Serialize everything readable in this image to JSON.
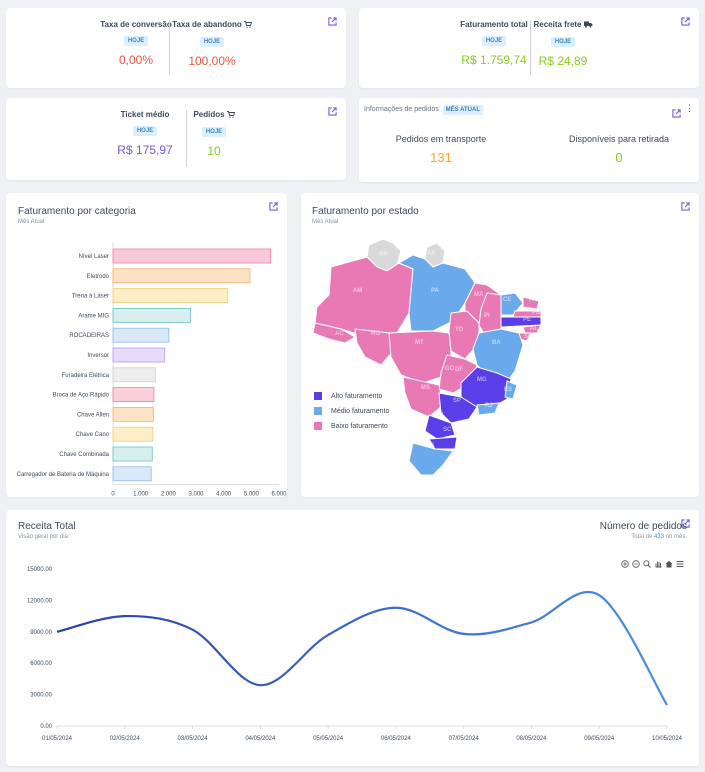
{
  "kpis": {
    "conversion": {
      "label": "Taxa de conversão",
      "badge": "HOJE",
      "value": "0,00%",
      "color": "#f2543d"
    },
    "abandon": {
      "label": "Taxa de abandono",
      "badge": "HOJE",
      "value": "100,00%",
      "color": "#f2543d"
    },
    "billing_total": {
      "label": "Faturamento total",
      "badge": "HOJE",
      "value": "R$ 1.759,74",
      "color": "#84d11c"
    },
    "shipping": {
      "label": "Receita frete",
      "badge": "HOJE",
      "value": "R$ 24,89",
      "color": "#84d11c"
    },
    "ticket": {
      "label": "Ticket médio",
      "badge": "HOJE",
      "value": "R$ 175,97",
      "color": "#6c5ce7"
    },
    "orders": {
      "label": "Pedidos",
      "badge": "HOJE",
      "value": "10",
      "color": "#84d11c"
    }
  },
  "order_info": {
    "title": "Informações de pedidos",
    "badge": "MÊS ATUAL",
    "in_transit_label": "Pedidos em transporte",
    "in_transit_value": "131",
    "in_transit_color": "#f5a623",
    "pickup_label": "Disponíveis para retirada",
    "pickup_value": "0",
    "pickup_color": "#84d11c"
  },
  "category_card": {
    "title": "Faturamento por categoria",
    "subtitle": "Mês Atual"
  },
  "state_card": {
    "title": "Faturamento por estado",
    "subtitle": "Mês Atual",
    "legend": [
      {
        "label": "Alto faturamento",
        "color": "#5a3ee8"
      },
      {
        "label": "Médio faturamento",
        "color": "#6aa9ec"
      },
      {
        "label": "Baixo faturamento",
        "color": "#e879b4"
      }
    ],
    "state_labels": [
      "RR",
      "AP",
      "AM",
      "PA",
      "MA",
      "CE",
      "RN",
      "PB",
      "PE",
      "AL",
      "SE",
      "PI",
      "TO",
      "BA",
      "AC",
      "RO",
      "MT",
      "GO",
      "DF",
      "MS",
      "MG",
      "ES",
      "SP",
      "RJ",
      "PR",
      "SC",
      "RS"
    ]
  },
  "revenue_card": {
    "title": "Receita Total",
    "subtitle": "Visão geral por dia",
    "orders_title": "Número de pedidos",
    "orders_prefix": "Total de ",
    "orders_count": "433",
    "orders_suffix": " no mês."
  },
  "chart_data": [
    {
      "type": "bar",
      "orientation": "horizontal",
      "categories": [
        "Nível Laser",
        "Eletrodo",
        "Trena à Laser",
        "Arame MIG",
        "ROCADEIRAS",
        "Inversor",
        "Furadeira Elétrica",
        "Broca de Aço Rápido",
        "Chave Allen",
        "Chave Cano",
        "Chave Combinada",
        "Carregador de Bateria de Máquina"
      ],
      "values": [
        5700,
        4950,
        4150,
        2800,
        2020,
        1870,
        1530,
        1480,
        1460,
        1440,
        1420,
        1380
      ],
      "colors": [
        "#f7c9d9",
        "#fde3c4",
        "#fdeec8",
        "#d6efec",
        "#d9e8fb",
        "#e6dbf9",
        "#eeeeee",
        "#f9cfdb",
        "#fde3c4",
        "#fdeec8",
        "#d6efec",
        "#d9e8fb"
      ],
      "border_colors": [
        "#ef7fa3",
        "#f7b267",
        "#f6cd6d",
        "#6cc4bb",
        "#8fb9ee",
        "#b89cf0",
        "#cfcfcf",
        "#ef7fa3",
        "#f7b267",
        "#f6cd6d",
        "#6cc4bb",
        "#8fb9ee"
      ],
      "xticks": [
        "0",
        "1.000",
        "2.000",
        "3.000",
        "4.000",
        "5.000",
        "6.000"
      ],
      "xlim": [
        0,
        6000
      ]
    },
    {
      "type": "line",
      "x": [
        "01/05/2024",
        "02/05/2024",
        "03/05/2024",
        "04/05/2024",
        "05/05/2024",
        "06/05/2024",
        "07/05/2024",
        "08/05/2024",
        "09/05/2024",
        "10/05/2024"
      ],
      "values": [
        9000,
        10500,
        9200,
        3900,
        8700,
        11300,
        8800,
        9900,
        12500,
        2000
      ],
      "yticks": [
        "0.00",
        "3000.00",
        "6000.00",
        "9000.00",
        "12000.00",
        "15000.00"
      ],
      "ylim": [
        0,
        15000
      ],
      "line_color_start": "#2c3fae",
      "line_color_end": "#4a90e2"
    }
  ]
}
